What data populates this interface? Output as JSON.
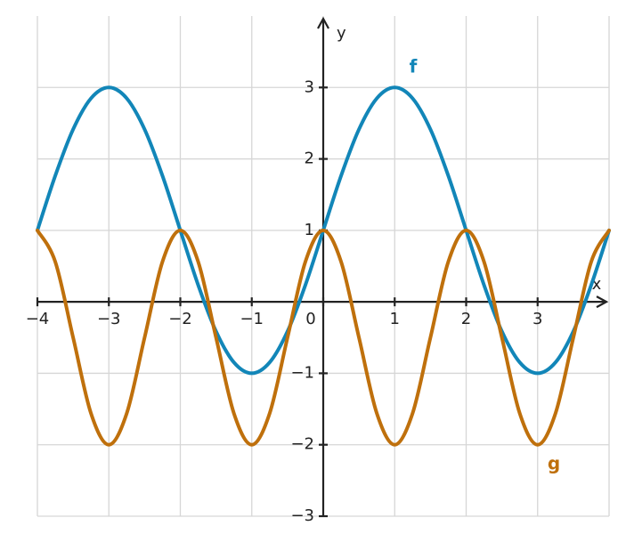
{
  "chart_data": {
    "type": "line",
    "x_label": "x",
    "y_label": "y",
    "x": [
      -4,
      -3.75,
      -3.5,
      -3.25,
      -3,
      -2.75,
      -2.5,
      -2.25,
      -2,
      -1.75,
      -1.5,
      -1.25,
      -1,
      -0.75,
      -0.5,
      -0.25,
      0,
      0.25,
      0.5,
      0.75,
      1,
      1.25,
      1.5,
      1.75,
      2,
      2.25,
      2.5,
      2.75,
      3,
      3.25,
      3.5,
      3.75,
      4
    ],
    "series": [
      {
        "name": "f",
        "color": "#1286b8",
        "values": [
          1,
          1.765,
          2.414,
          2.848,
          3,
          2.848,
          2.414,
          1.765,
          1,
          0.235,
          -0.414,
          -0.848,
          -1,
          -0.848,
          -0.414,
          0.235,
          1,
          1.765,
          2.414,
          2.848,
          3,
          2.848,
          2.414,
          1.765,
          1,
          0.235,
          -0.414,
          -0.848,
          -1,
          -0.848,
          -0.414,
          0.235,
          1
        ]
      },
      {
        "name": "g",
        "color": "#bf700c",
        "values": [
          1,
          0.561,
          -0.5,
          -1.561,
          -2,
          -1.561,
          -0.5,
          0.561,
          1,
          0.561,
          -0.5,
          -1.561,
          -2,
          -1.561,
          -0.5,
          0.561,
          1,
          0.561,
          -0.5,
          -1.561,
          -2,
          -1.561,
          -0.5,
          0.561,
          1,
          0.561,
          -0.5,
          -1.561,
          -2,
          -1.561,
          -0.5,
          0.561,
          1
        ]
      }
    ],
    "xlim": [
      -4,
      4
    ],
    "ylim": [
      -3,
      4
    ],
    "xticks": [
      {
        "value": -4,
        "label": "−4"
      },
      {
        "value": -3,
        "label": "−3"
      },
      {
        "value": -2,
        "label": "−2"
      },
      {
        "value": -1,
        "label": "−1"
      },
      0,
      1,
      2,
      3
    ],
    "yticks": [
      {
        "value": -3,
        "label": "−3"
      },
      {
        "value": -2,
        "label": "−2"
      },
      {
        "value": -1,
        "label": "−1"
      },
      1,
      2,
      3
    ],
    "grid": true
  }
}
